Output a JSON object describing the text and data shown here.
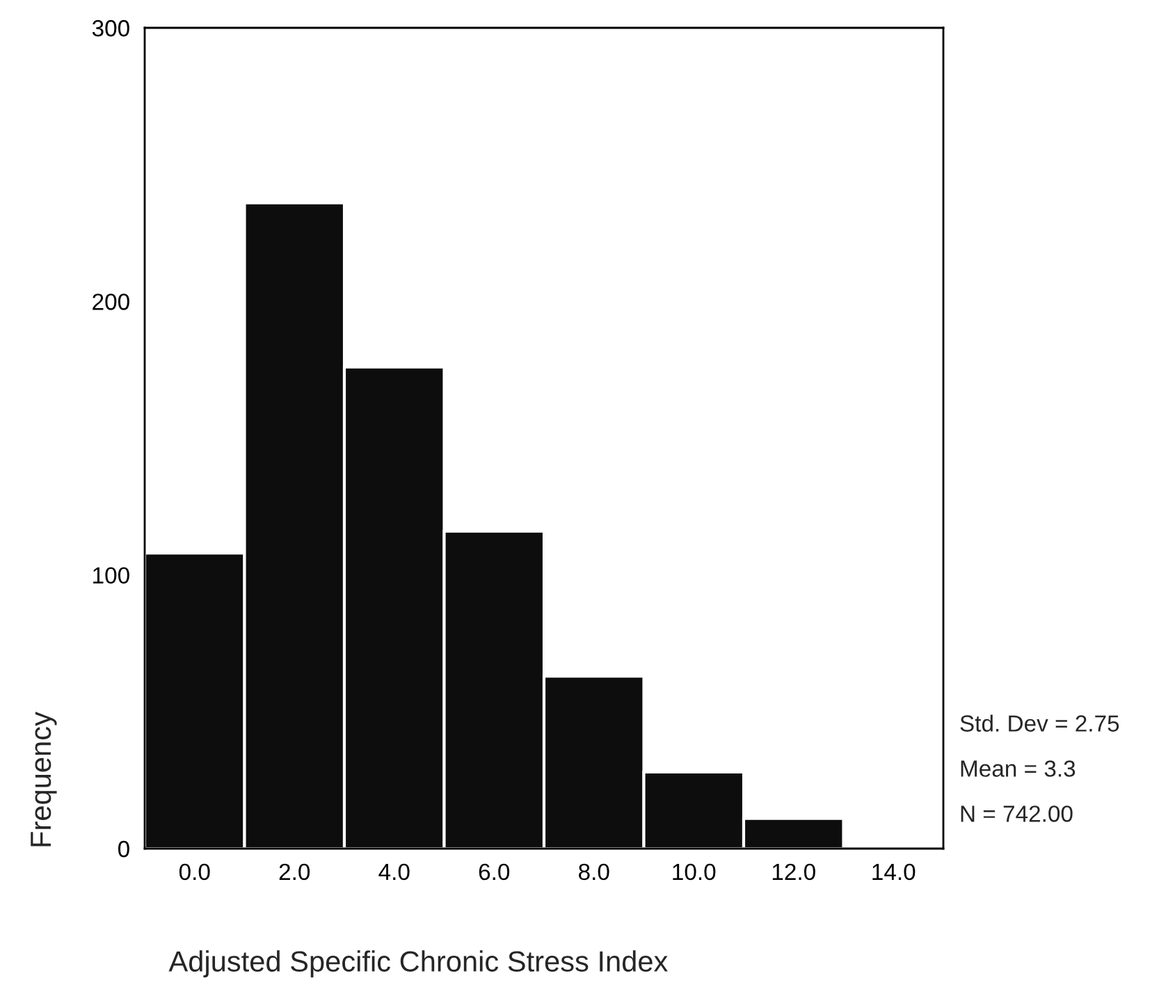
{
  "chart_data": {
    "type": "histogram",
    "xlabel": "Adjusted Specific Chronic Stress Index",
    "ylabel": "Frequency",
    "bins": [
      -1,
      1,
      3,
      5,
      7,
      9,
      11,
      13
    ],
    "values": [
      108,
      236,
      176,
      116,
      63,
      28,
      11
    ],
    "color": "#0d0d0d",
    "xlim": [
      -1,
      15
    ],
    "xticks": [
      {
        "value": 0,
        "label": "0.0"
      },
      {
        "value": 2,
        "label": "2.0"
      },
      {
        "value": 4,
        "label": "4.0"
      },
      {
        "value": 6,
        "label": "6.0"
      },
      {
        "value": 8,
        "label": "8.0"
      },
      {
        "value": 10,
        "label": "10.0"
      },
      {
        "value": 12,
        "label": "12.0"
      },
      {
        "value": 14,
        "label": "14.0"
      }
    ],
    "ylim": [
      0,
      300
    ],
    "yticks": [
      0,
      100,
      200,
      300
    ],
    "annotations": [
      "Std. Dev = 2.75",
      "Mean = 3.3",
      "N = 742.00"
    ],
    "grid": false,
    "legend": false
  }
}
